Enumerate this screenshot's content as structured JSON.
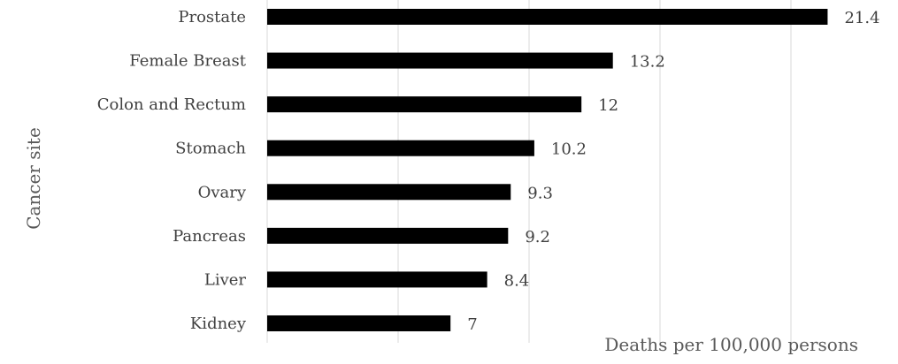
{
  "chart_data": {
    "type": "bar",
    "orientation": "horizontal",
    "categories": [
      "Prostate",
      "Female Breast",
      "Colon and Rectum",
      "Stomach",
      "Ovary",
      "Pancreas",
      "Liver",
      "Kidney"
    ],
    "values": [
      21.4,
      13.2,
      12,
      10.2,
      9.3,
      9.2,
      8.4,
      7
    ],
    "value_labels": [
      "21.4",
      "13.2",
      "12",
      "10.2",
      "9.3",
      "9.2",
      "8.4",
      "7"
    ],
    "title": "",
    "xlabel": "Deaths per 100,000 persons",
    "ylabel": "Cancer  site",
    "xlim": [
      0,
      25
    ],
    "grid": true,
    "legend": "none",
    "bar_color": "#000000"
  }
}
